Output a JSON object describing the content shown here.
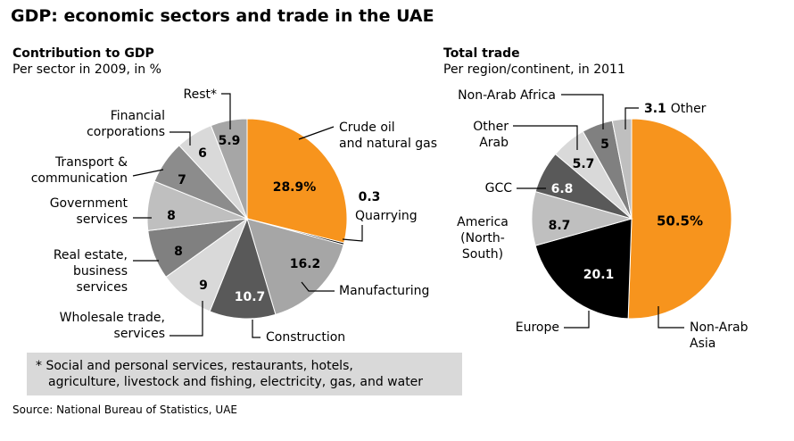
{
  "title": "GDP: economic sectors and trade in the UAE",
  "footnote": {
    "line1": "* Social and personal services, restaurants, hotels,",
    "line2": "agriculture, livestock and fishing, electricity, gas, and water"
  },
  "source": "Source: National Bureau of Statistics, UAE",
  "chart_data": [
    {
      "type": "pie",
      "title": "Contribution to GDP",
      "subtitle": "Per sector in 2009, in %",
      "slices": [
        {
          "label": "Crude oil and natural gas",
          "value": 28.9,
          "value_text": "28.9%",
          "color": "#f7941d"
        },
        {
          "label": "Quarrying",
          "value": 0.3,
          "value_text": "0.3",
          "color": "#000000"
        },
        {
          "label": "Manufacturing",
          "value": 16.2,
          "value_text": "16.2",
          "color": "#a6a6a6"
        },
        {
          "label": "Construction",
          "value": 10.7,
          "value_text": "10.7",
          "color": "#595959"
        },
        {
          "label": "Wholesale trade, services",
          "value": 9,
          "value_text": "9",
          "color": "#d9d9d9"
        },
        {
          "label": "Real estate, business services",
          "value": 8,
          "value_text": "8",
          "color": "#808080"
        },
        {
          "label": "Government services",
          "value": 8,
          "value_text": "8",
          "color": "#bfbfbf"
        },
        {
          "label": "Transport & communication",
          "value": 7,
          "value_text": "7",
          "color": "#8c8c8c"
        },
        {
          "label": "Financial corporations",
          "value": 6,
          "value_text": "6",
          "color": "#d9d9d9"
        },
        {
          "label": "Rest*",
          "value": 5.9,
          "value_text": "5.9",
          "color": "#a6a6a6"
        }
      ]
    },
    {
      "type": "pie",
      "title": "Total trade",
      "subtitle": "Per region/continent, in 2011",
      "slices": [
        {
          "label": "Non-Arab Asia",
          "value": 50.5,
          "value_text": "50.5%",
          "color": "#f7941d"
        },
        {
          "label": "Europe",
          "value": 20.1,
          "value_text": "20.1",
          "color": "#000000"
        },
        {
          "label": "America (North-South)",
          "value": 8.7,
          "value_text": "8.7",
          "color": "#bfbfbf"
        },
        {
          "label": "GCC",
          "value": 6.8,
          "value_text": "6.8",
          "color": "#595959"
        },
        {
          "label": "Other Arab",
          "value": 5.7,
          "value_text": "5.7",
          "color": "#d9d9d9"
        },
        {
          "label": "Non-Arab Africa",
          "value": 5,
          "value_text": "5",
          "color": "#808080"
        },
        {
          "label": "Other",
          "value": 3.1,
          "value_text": "3.1",
          "color": "#bfbfbf"
        }
      ]
    }
  ]
}
